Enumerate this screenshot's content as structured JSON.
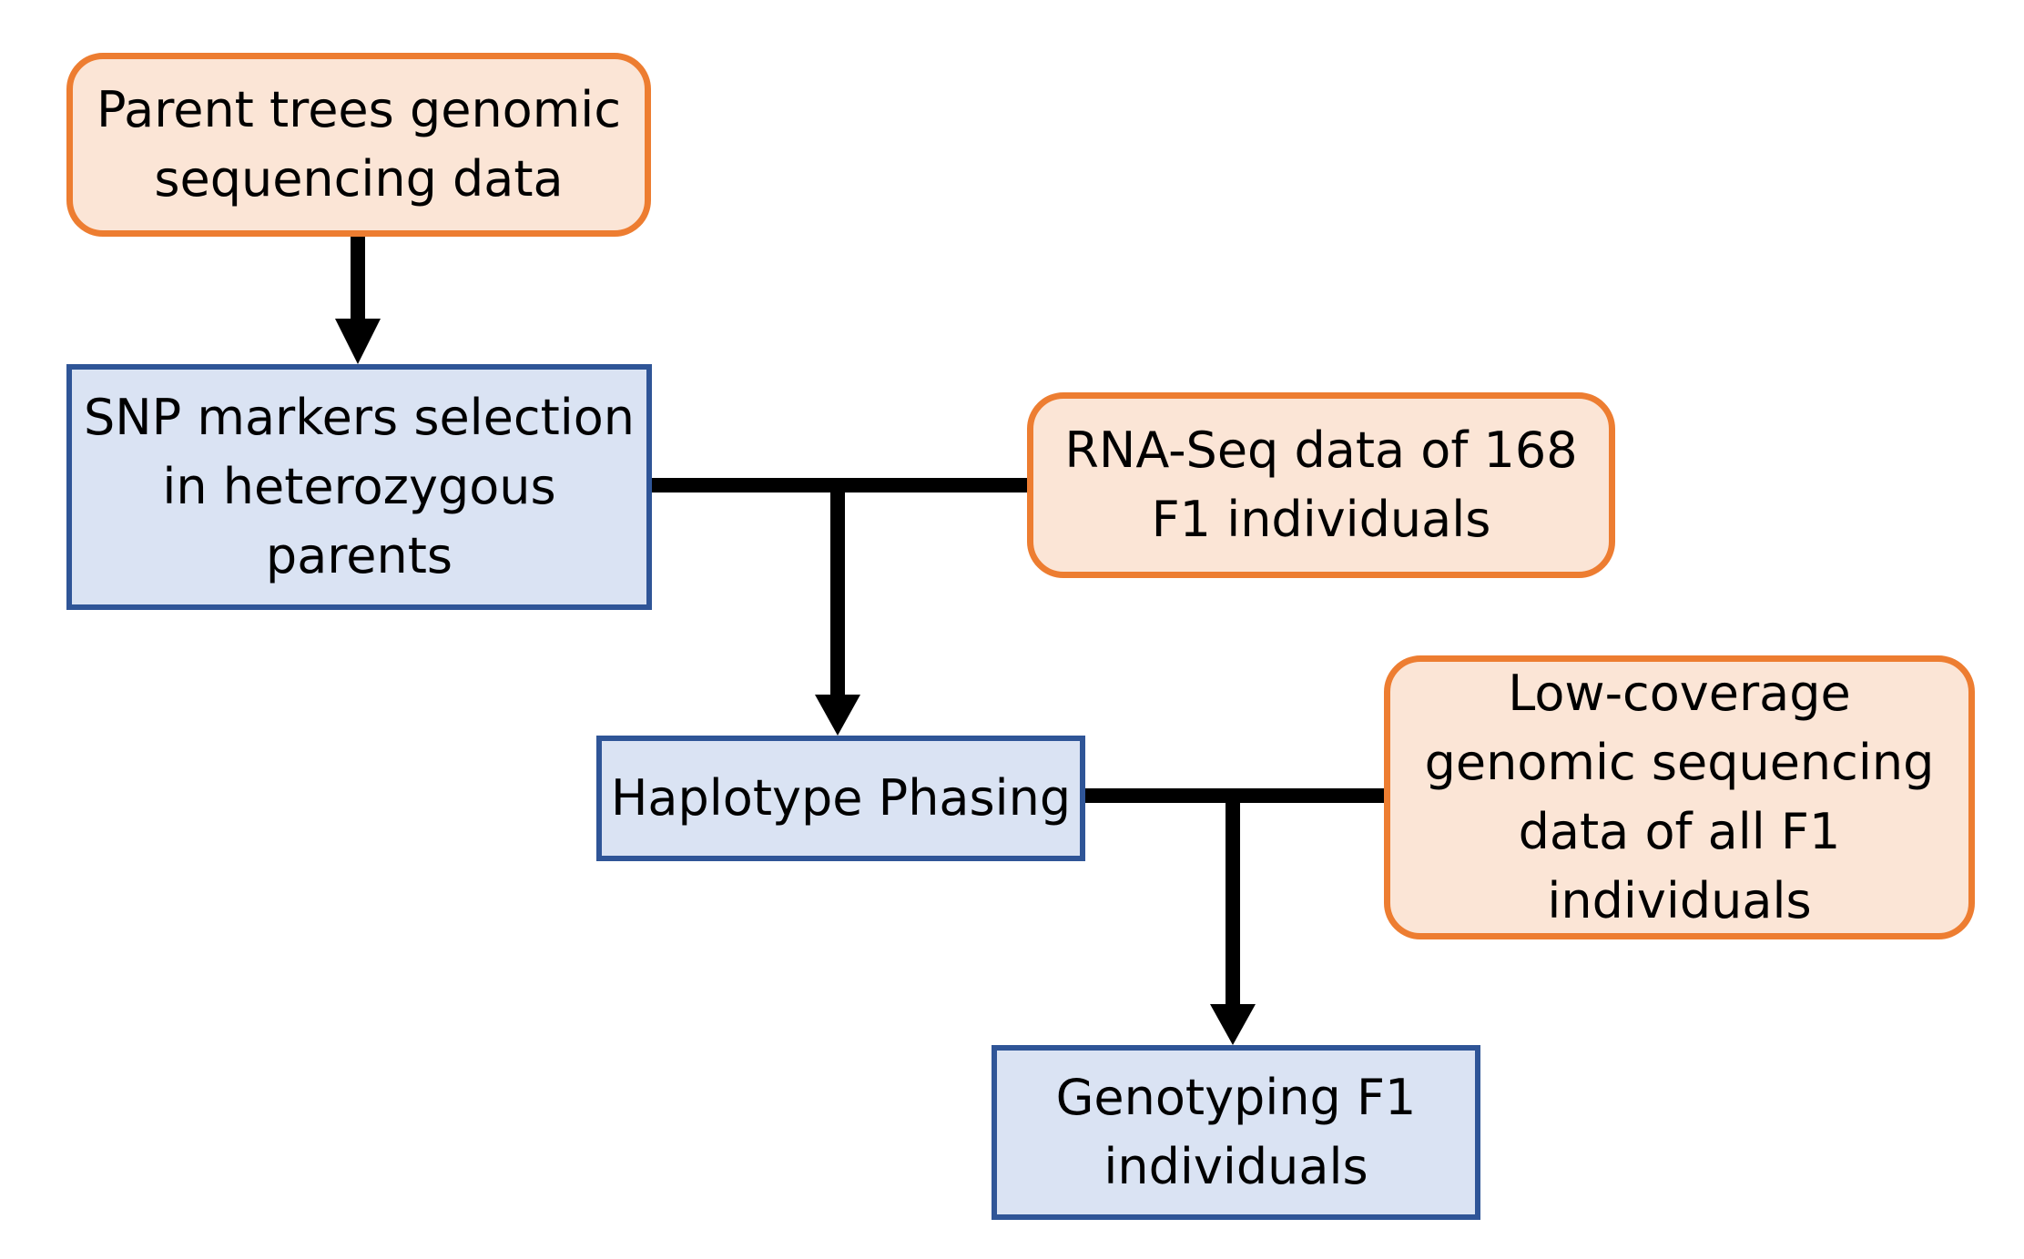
{
  "colors": {
    "input_fill": "#FBE5D6",
    "input_border": "#ED7D31",
    "process_fill": "#DAE3F3",
    "process_border": "#2F5597",
    "connector": "#000000"
  },
  "nodes": {
    "parent_sequencing": {
      "kind": "input",
      "lines": [
        "Parent trees genomic",
        "sequencing data"
      ]
    },
    "snp_selection": {
      "kind": "process",
      "lines": [
        "SNP markers selection",
        "in heterozygous",
        "parents"
      ]
    },
    "rnaseq_data": {
      "kind": "input",
      "lines": [
        "RNA-Seq data of 168",
        "F1 individuals"
      ]
    },
    "haplotype_phasing": {
      "kind": "process",
      "lines": [
        "Haplotype Phasing"
      ]
    },
    "lowcov_data": {
      "kind": "input",
      "lines": [
        "Low-coverage",
        "genomic sequencing",
        "data of all F1",
        "individuals"
      ]
    },
    "genotyping": {
      "kind": "process",
      "lines": [
        "Genotyping F1",
        "individuals"
      ]
    }
  },
  "edges": [
    {
      "from": "parent_sequencing",
      "to": "snp_selection"
    },
    {
      "from": [
        "snp_selection",
        "rnaseq_data"
      ],
      "to": "haplotype_phasing"
    },
    {
      "from": [
        "haplotype_phasing",
        "lowcov_data"
      ],
      "to": "genotyping"
    }
  ]
}
